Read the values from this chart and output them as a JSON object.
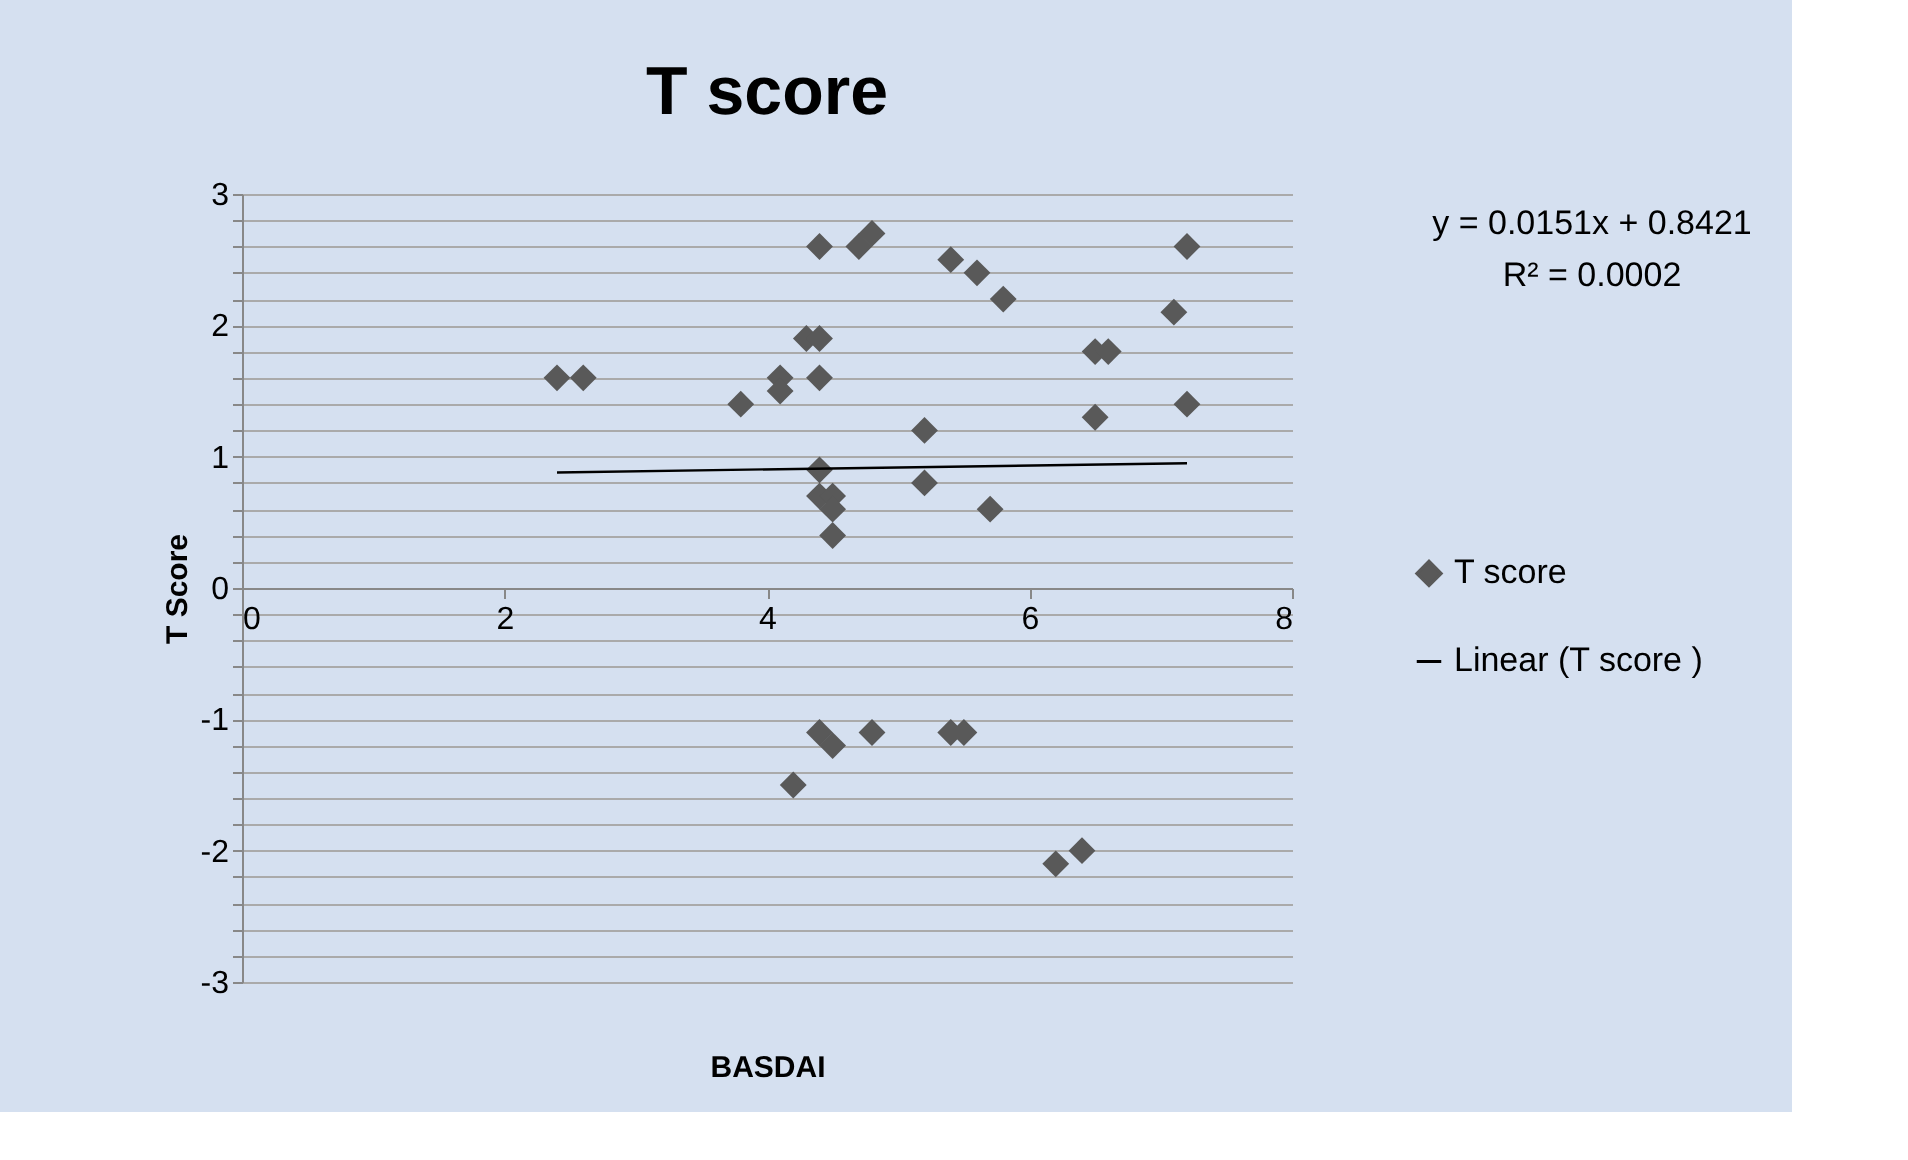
{
  "chart_data": {
    "type": "scatter",
    "title": "T score",
    "xlabel": "BASDAI",
    "ylabel": "T Score",
    "xlim": [
      0,
      8
    ],
    "xticks": [
      0,
      2,
      4,
      6,
      8
    ],
    "ylim": [
      -3,
      3
    ],
    "yticks": [
      -3,
      {
        "value": -2.8,
        "label": null
      },
      {
        "value": -2.6,
        "label": null
      },
      {
        "value": -2.4,
        "label": null
      },
      {
        "value": -2.2,
        "label": null
      },
      -2,
      {
        "value": -1.8,
        "label": null
      },
      {
        "value": -1.6,
        "label": null
      },
      {
        "value": -1.4,
        "label": null
      },
      {
        "value": -1.2,
        "label": null
      },
      -1,
      {
        "value": -0.8,
        "label": null
      },
      {
        "value": -0.6,
        "label": null
      },
      {
        "value": -0.4,
        "label": null
      },
      {
        "value": -0.2,
        "label": null
      },
      0,
      {
        "value": 0.2,
        "label": null
      },
      {
        "value": 0.4,
        "label": null
      },
      {
        "value": 0.6,
        "label": null
      },
      {
        "value": 0.8,
        "label": null
      },
      1,
      {
        "value": 1.2,
        "label": null
      },
      {
        "value": 1.4,
        "label": null
      },
      {
        "value": 1.6,
        "label": null
      },
      {
        "value": 1.8,
        "label": null
      },
      2,
      {
        "value": 2.2,
        "label": null
      },
      {
        "value": 2.4,
        "label": null
      },
      {
        "value": 2.6,
        "label": null
      },
      {
        "value": 2.8,
        "label": null
      },
      3
    ],
    "grid": "y",
    "legend": "right",
    "series": [
      {
        "name": "T score",
        "marker": "diamond",
        "color": "#595959",
        "x": [
          2.4,
          2.6,
          3.8,
          4.1,
          4.1,
          4.3,
          4.4,
          4.4,
          4.4,
          4.7,
          4.8,
          5.4,
          5.6,
          5.8,
          6.5,
          6.6,
          7.1,
          7.2,
          7.2,
          6.5,
          5.2,
          5.2,
          5.7,
          4.4,
          4.4,
          4.5,
          4.5,
          4.5,
          4.4,
          4.5,
          4.8,
          4.2,
          5.4,
          5.5,
          6.2,
          6.4
        ],
        "values": [
          1.6,
          1.6,
          1.4,
          1.6,
          1.5,
          1.9,
          1.9,
          1.6,
          2.6,
          2.6,
          2.7,
          2.5,
          2.4,
          2.2,
          1.8,
          1.8,
          2.1,
          2.6,
          1.4,
          1.3,
          1.2,
          0.8,
          0.6,
          0.9,
          0.7,
          0.7,
          0.6,
          0.4,
          -1.1,
          -1.2,
          -1.1,
          -1.5,
          -1.1,
          -1.1,
          -2.1,
          -2.0
        ]
      },
      {
        "name": "Linear (T score )",
        "type": "line",
        "color": "#000000",
        "line_style": "solid",
        "x": [
          2.4,
          7.2
        ],
        "values": [
          0.88,
          0.95
        ]
      }
    ],
    "annotations": [
      "y = 0.0151x + 0.8421",
      "R² = 0.0002"
    ]
  }
}
